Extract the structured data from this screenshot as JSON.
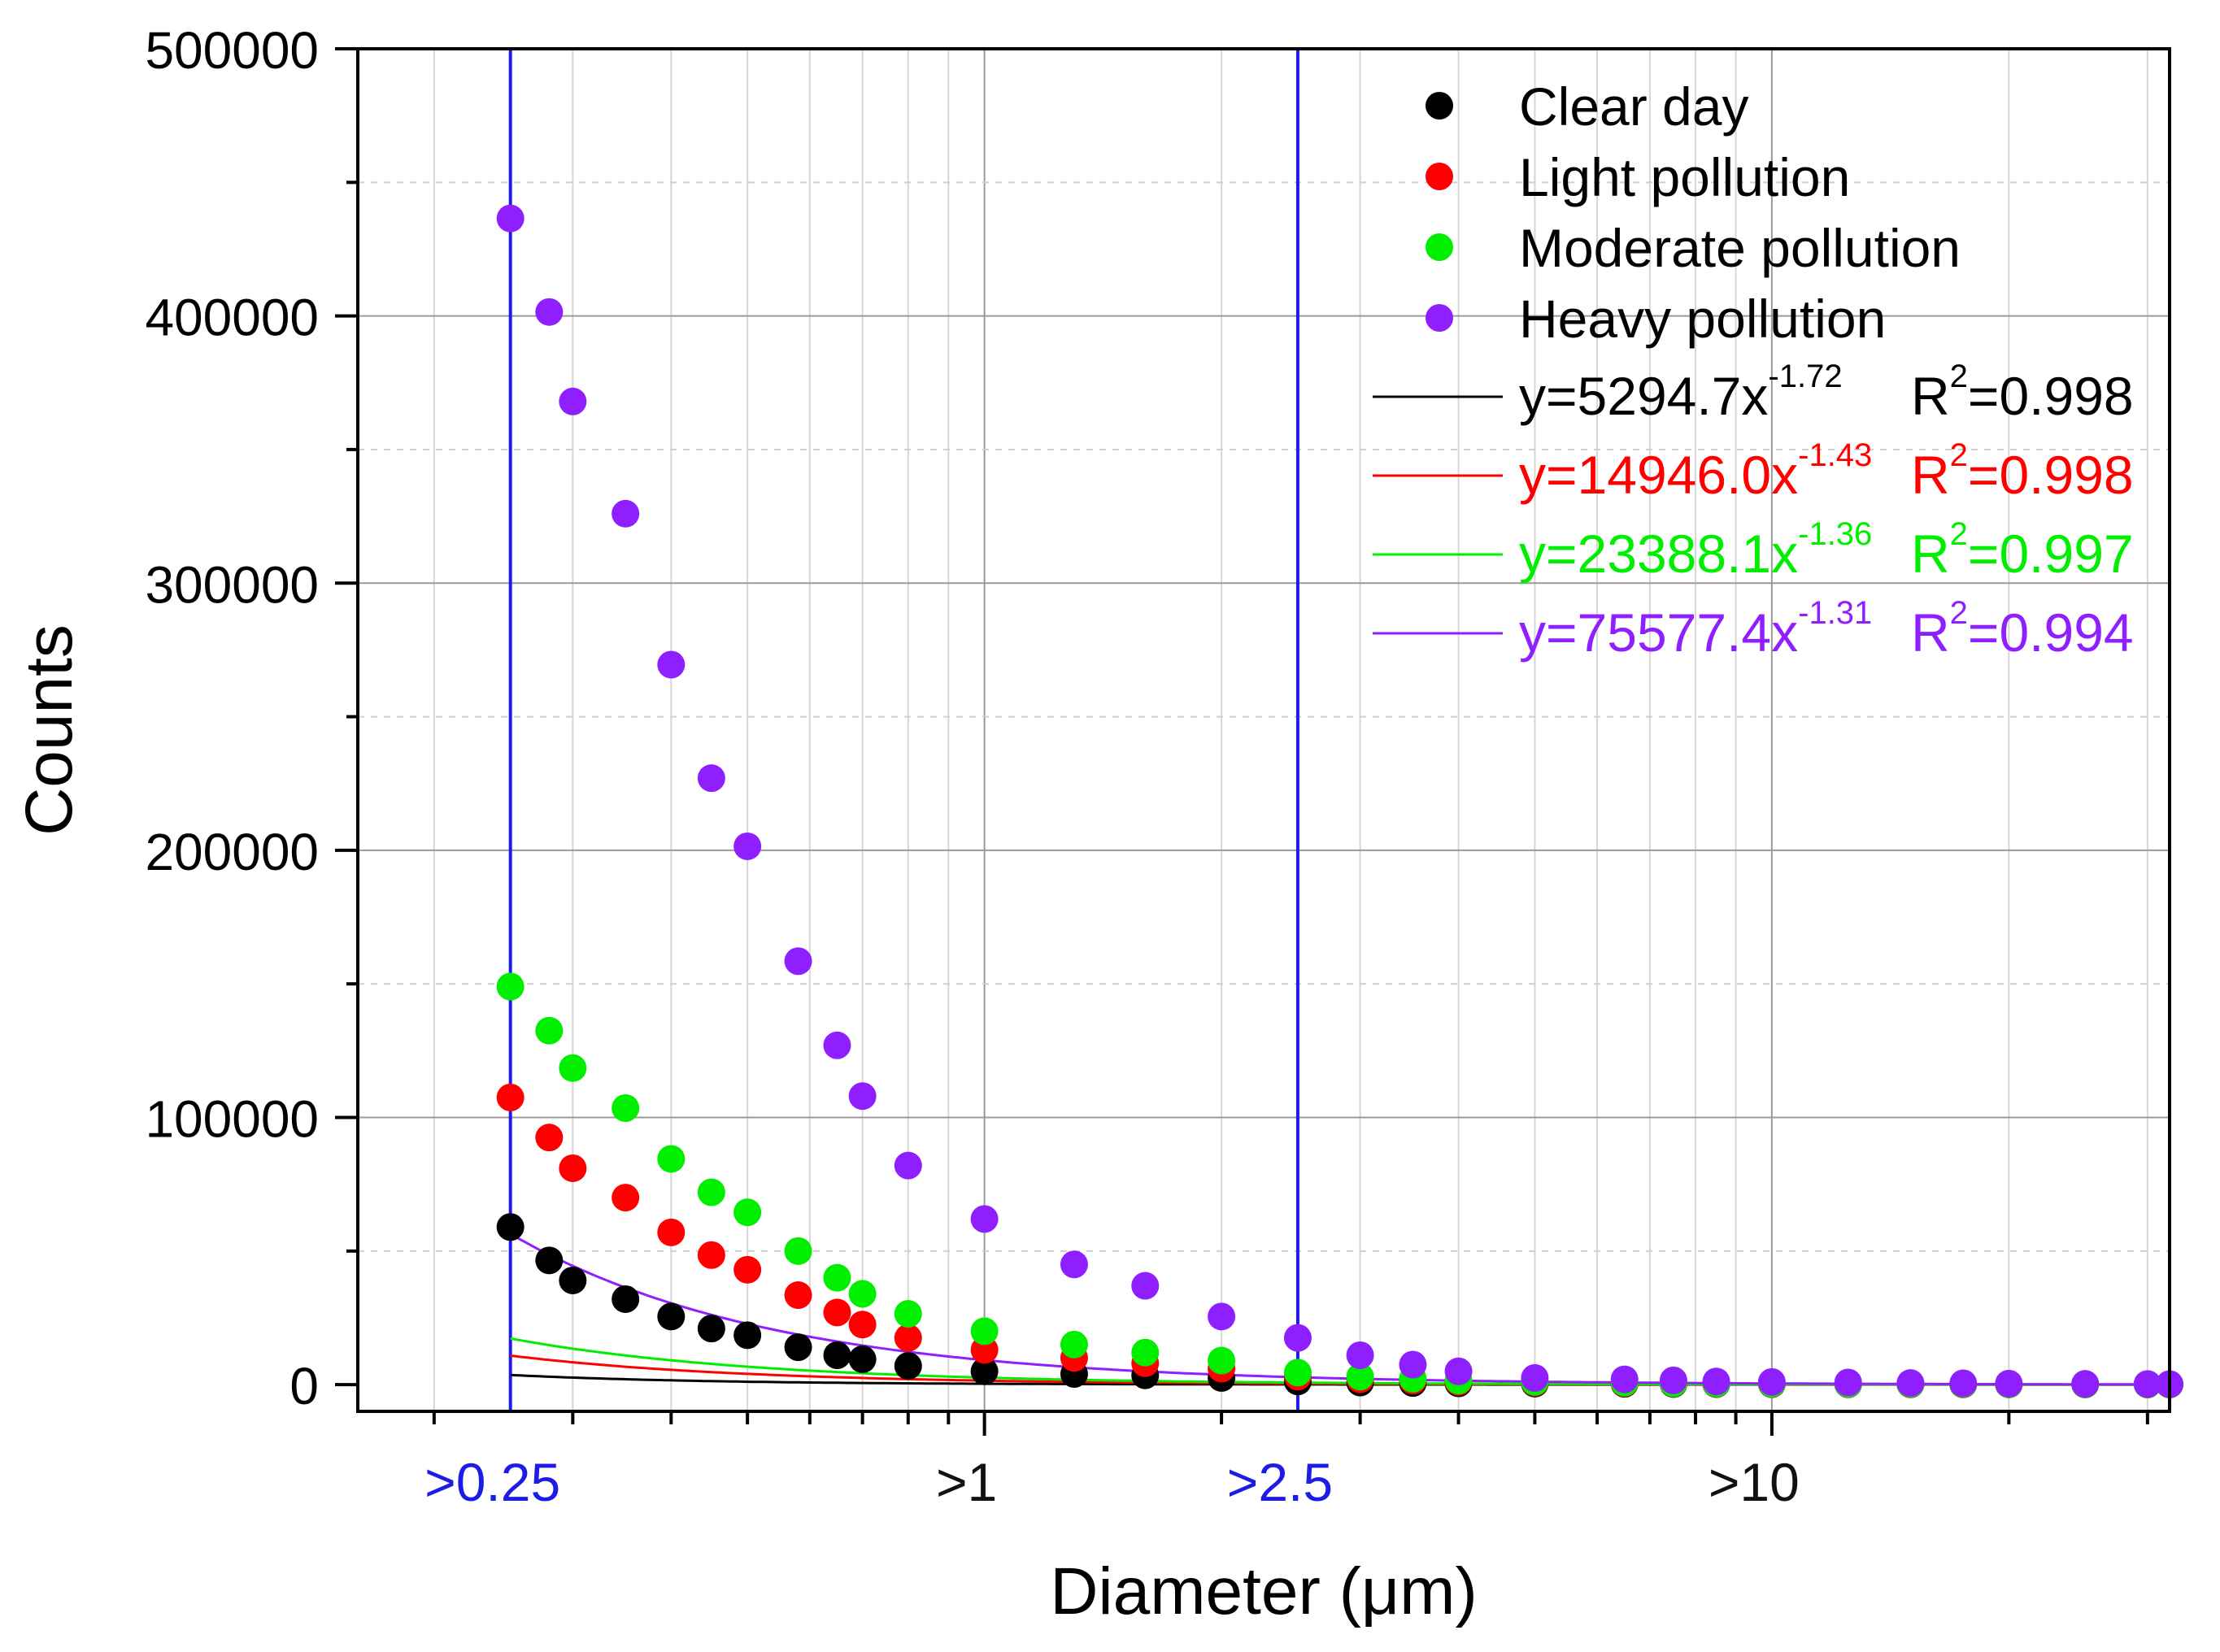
{
  "chart_data": {
    "type": "scatter",
    "xlabel": "Diameter (μm)",
    "ylabel": "Counts",
    "xscale": "log",
    "xlim": [
      0.16,
      32
    ],
    "ylim": [
      -10000,
      500000
    ],
    "grid": true,
    "y_ticks": [
      {
        "value": 0,
        "label": "0"
      },
      {
        "value": 100000,
        "label": "100000"
      },
      {
        "value": 200000,
        "label": "200000"
      },
      {
        "value": 300000,
        "label": "300000"
      },
      {
        "value": 400000,
        "label": "400000"
      },
      {
        "value": 500000,
        "label": "500000"
      }
    ],
    "x_tick_labels": [
      {
        "value": 0.25,
        "label": ">0.25",
        "color": "#1c1ce6"
      },
      {
        "value": 1,
        "label": ">1",
        "color": "#111111"
      },
      {
        "value": 2.5,
        "label": ">2.5",
        "color": "#1c1ce6"
      },
      {
        "value": 10,
        "label": ">10",
        "color": "#111111"
      }
    ],
    "reference_lines": [
      0.25,
      2.5
    ],
    "x": [
      0.25,
      0.28,
      0.3,
      0.35,
      0.4,
      0.45,
      0.5,
      0.58,
      0.65,
      0.7,
      0.8,
      1.0,
      1.3,
      1.6,
      2.0,
      2.5,
      3.0,
      3.5,
      4.0,
      5.0,
      6.5,
      7.5,
      8.5,
      10.0,
      12.5,
      15.0,
      17.5,
      20.0,
      25.0,
      30.0,
      32.0
    ],
    "series": [
      {
        "name": "Clear day",
        "color": "#000000",
        "values": [
          59000,
          46500,
          39000,
          32000,
          25500,
          21000,
          18500,
          14000,
          11000,
          9500,
          7000,
          5000,
          4000,
          3500,
          2500,
          1200,
          800,
          600,
          500,
          400,
          300,
          250,
          200,
          180,
          150,
          120,
          100,
          90,
          80,
          70,
          60
        ]
      },
      {
        "name": "Light pollution",
        "color": "#ff0000",
        "values": [
          107500,
          92500,
          81000,
          70000,
          57000,
          48500,
          43000,
          33500,
          27000,
          22500,
          17500,
          13000,
          10000,
          8000,
          6000,
          3000,
          2000,
          1500,
          1000,
          700,
          500,
          400,
          300,
          250,
          200,
          160,
          130,
          110,
          90,
          80,
          70
        ]
      },
      {
        "name": "Moderate pollution",
        "color": "#00ee00",
        "values": [
          149000,
          132500,
          118500,
          103500,
          84500,
          72000,
          64500,
          50000,
          40000,
          34000,
          26500,
          20000,
          15000,
          12000,
          9000,
          4500,
          3000,
          2200,
          1500,
          1000,
          700,
          500,
          400,
          350,
          300,
          250,
          200,
          150,
          120,
          100,
          90
        ]
      },
      {
        "name": "Heavy pollution",
        "color": "#8f1fff",
        "values": [
          436500,
          401500,
          368000,
          326000,
          269500,
          227000,
          201500,
          158500,
          127000,
          108000,
          82000,
          62000,
          45000,
          37000,
          25500,
          17500,
          11000,
          7500,
          5000,
          2500,
          2000,
          1600,
          1200,
          1000,
          800,
          600,
          500,
          400,
          300,
          250,
          200
        ]
      }
    ],
    "fits": [
      {
        "series": "Clear day",
        "color": "#000000",
        "a": 5294.7,
        "b": -1.72,
        "equation_base": "y=5294.7x",
        "exponent": "-1.72",
        "r2_prefix": "R",
        "r2_sup": "2",
        "r2_value": "=0.998"
      },
      {
        "series": "Light pollution",
        "color": "#ff0000",
        "a": 14946.0,
        "b": -1.43,
        "equation_base": "y=14946.0x",
        "exponent": "-1.43",
        "r2_prefix": "R",
        "r2_sup": "2",
        "r2_value": "=0.998"
      },
      {
        "series": "Moderate pollution",
        "color": "#00ee00",
        "a": 23388.1,
        "b": -1.36,
        "equation_base": "y=23388.1x",
        "exponent": "-1.36",
        "r2_prefix": "R",
        "r2_sup": "2",
        "r2_value": "=0.997"
      },
      {
        "series": "Heavy pollution",
        "color": "#8f1fff",
        "a": 75577.4,
        "b": -1.31,
        "equation_base": "y=75577.4x",
        "exponent": "-1.31",
        "r2_prefix": "R",
        "r2_sup": "2",
        "r2_value": "=0.994"
      }
    ],
    "fit_scale": 5.0,
    "legend_position": "top-right"
  }
}
